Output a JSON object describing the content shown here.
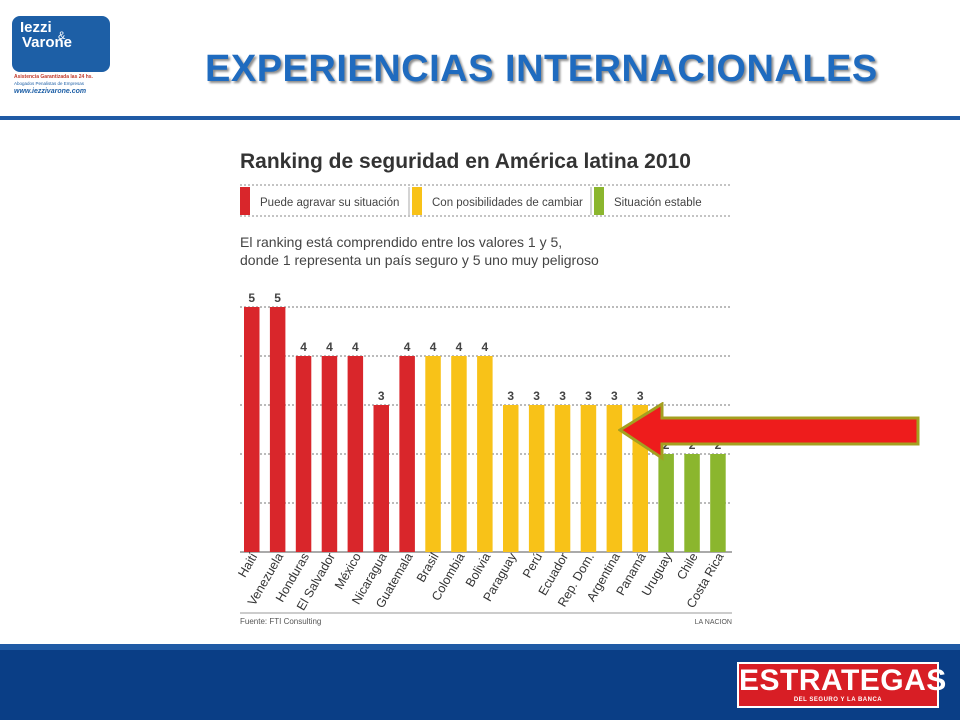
{
  "logo": {
    "name_line1": "Iezzi",
    "amp": "&",
    "name_line2": "Varone",
    "tagline": "Asistencia Garantizada las 24 hs.",
    "subtitle": "Abogados Penalistas de Empresas",
    "url": "www.iezzivarone.com"
  },
  "header": {
    "title": "EXPERIENCIAS INTERNACIONALES"
  },
  "footer": {
    "brand": "ESTRATEGAS",
    "brand_sub": "DEL SEGURO Y LA BANCA"
  },
  "colors": {
    "red": "#d9262b",
    "yellow": "#f8c218",
    "green": "#8bb62e",
    "title_blue": "#1f6bbf",
    "footer_blue": "#0a3e86"
  },
  "chart_data": {
    "type": "bar",
    "title": "Ranking de seguridad en América latina 2010",
    "legend": [
      {
        "label": "Puede agravar su situación",
        "color": "#d9262b"
      },
      {
        "label": "Con posibilidades de cambiar",
        "color": "#f8c218"
      },
      {
        "label": "Situación estable",
        "color": "#8bb62e"
      }
    ],
    "note_line1": "El ranking está comprendido entre los valores 1 y 5,",
    "note_line2": "donde 1 representa un país seguro y 5 uno muy peligroso",
    "categories": [
      "Haití",
      "Venezuela",
      "Honduras",
      "El Salvador",
      "México",
      "Nicaragua",
      "Guatemala",
      "Brasil",
      "Colombia",
      "Bolivia",
      "Paraguay",
      "Perú",
      "Ecuador",
      "Rep. Dom.",
      "Argentina",
      "Panamá",
      "Uruguay",
      "Chile",
      "Costa Rica"
    ],
    "values": [
      5,
      5,
      4,
      4,
      4,
      3,
      4,
      4,
      4,
      4,
      3,
      3,
      3,
      3,
      3,
      3,
      2,
      2,
      2
    ],
    "groups": [
      "red",
      "red",
      "red",
      "red",
      "red",
      "red",
      "red",
      "yellow",
      "yellow",
      "yellow",
      "yellow",
      "yellow",
      "yellow",
      "yellow",
      "yellow",
      "yellow",
      "green",
      "green",
      "green"
    ],
    "ylim": [
      0,
      5
    ],
    "grid": true,
    "source": "Fuente: FTI Consulting",
    "publisher": "LA NACION"
  }
}
